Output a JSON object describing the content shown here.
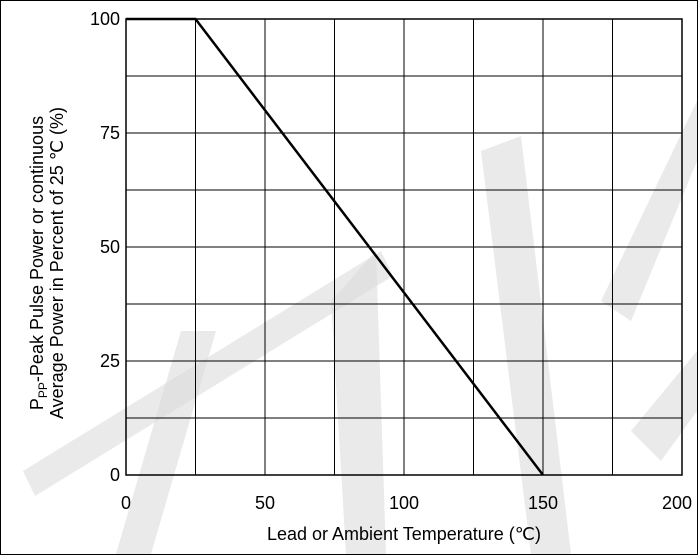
{
  "chart_data": {
    "type": "line",
    "xlabel": "Lead or Ambient Temperature (℃)",
    "ylabel_line1_prefix": "P",
    "ylabel_line1_sub": "PP",
    "ylabel_line1_rest": "-Peak Pulse Power or continuous",
    "ylabel_line2": "Average Power in Percent of 25 ℃ (%)",
    "xlim": [
      0,
      200
    ],
    "ylim": [
      0,
      100
    ],
    "x_ticks": [
      0,
      50,
      100,
      150,
      200
    ],
    "y_ticks": [
      0,
      25,
      50,
      75,
      100
    ],
    "x_grid_step": 25,
    "y_grid_step": 12.5,
    "grid": true,
    "series": [
      {
        "points": [
          {
            "x": 0,
            "y": 100
          },
          {
            "x": 25,
            "y": 100
          },
          {
            "x": 150,
            "y": 0
          }
        ]
      }
    ]
  }
}
